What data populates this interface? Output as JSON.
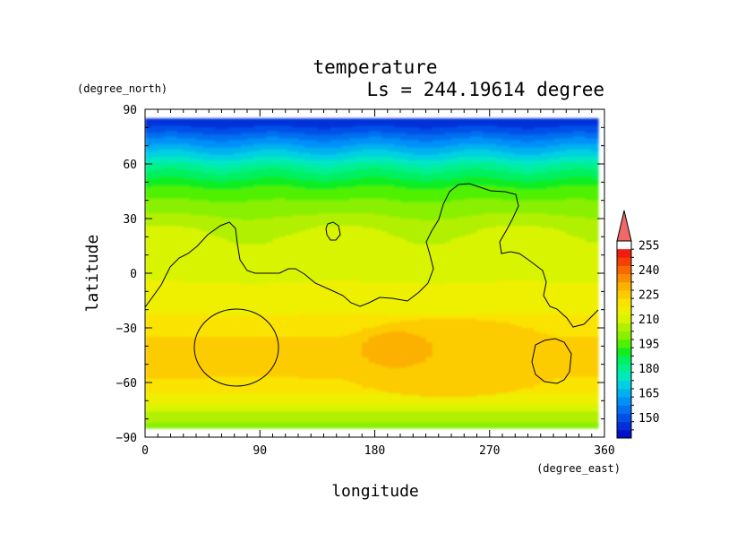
{
  "chart_data": {
    "type": "heatmap",
    "title": "temperature",
    "subtitle": "Ls = 244.19614 degree",
    "xlabel": "longitude",
    "ylabel": "latitude",
    "x_units": "(degree_east)",
    "y_units": "(degree_north)",
    "xlim": [
      0,
      360
    ],
    "ylim": [
      -90,
      90
    ],
    "x_ticks": [
      0,
      90,
      180,
      270,
      360
    ],
    "y_ticks": [
      90,
      60,
      30,
      0,
      -30,
      -60,
      -90
    ],
    "x_tick_labels": [
      "0",
      "90",
      "180",
      "270",
      "360"
    ],
    "y_tick_labels": [
      "90",
      "60",
      "30",
      "0",
      "−30",
      "−60",
      "−90"
    ],
    "data_extent": {
      "lat_max": 85,
      "lat_min": -85,
      "lon_min": 0,
      "lon_max": 355
    },
    "colorbar": {
      "levels": [
        140,
        145,
        150,
        155,
        160,
        165,
        170,
        175,
        180,
        185,
        190,
        195,
        200,
        205,
        210,
        215,
        220,
        225,
        230,
        235,
        240,
        245,
        250,
        255,
        260
      ],
      "labels": [
        "150",
        "165",
        "180",
        "195",
        "210",
        "225",
        "240",
        "255"
      ],
      "colors": [
        "#0013c4",
        "#0030d8",
        "#0050e8",
        "#0070f0",
        "#0090f8",
        "#00b0f0",
        "#00d0e0",
        "#00e8c0",
        "#00f090",
        "#00f060",
        "#10ee20",
        "#50f000",
        "#88f000",
        "#b0f000",
        "#d8f400",
        "#eef000",
        "#fbe300",
        "#fccc00",
        "#fcb000",
        "#fb8d00",
        "#f86800",
        "#f44000",
        "#f01c14",
        "#f06868"
      ],
      "extend": "max"
    },
    "temperature_by_latitude": {
      "lat": [
        85,
        80,
        75,
        70,
        65,
        60,
        55,
        50,
        45,
        40,
        35,
        30,
        25,
        20,
        15,
        10,
        5,
        0,
        -5,
        -10,
        -15,
        -20,
        -25,
        -30,
        -35,
        -40,
        -45,
        -50,
        -55,
        -60,
        -65,
        -70,
        -75,
        -80,
        -85
      ],
      "temp": [
        146,
        150,
        158,
        165,
        172,
        180,
        186,
        192,
        197,
        200,
        203,
        206,
        209,
        211,
        212,
        213,
        213,
        214,
        215,
        216,
        217,
        219,
        221,
        223,
        225,
        226,
        227,
        227,
        226,
        224,
        221,
        217,
        211,
        206,
        203
      ]
    },
    "warm_regions": [
      {
        "level": 225,
        "lon_range": [
          140,
          335
        ],
        "lat_range": [
          -68,
          -25
        ]
      },
      {
        "level": 230,
        "lon_range": [
          170,
          225
        ],
        "lat_range": [
          -52,
          -32
        ]
      }
    ],
    "contour_line": "topography contours (black)"
  }
}
